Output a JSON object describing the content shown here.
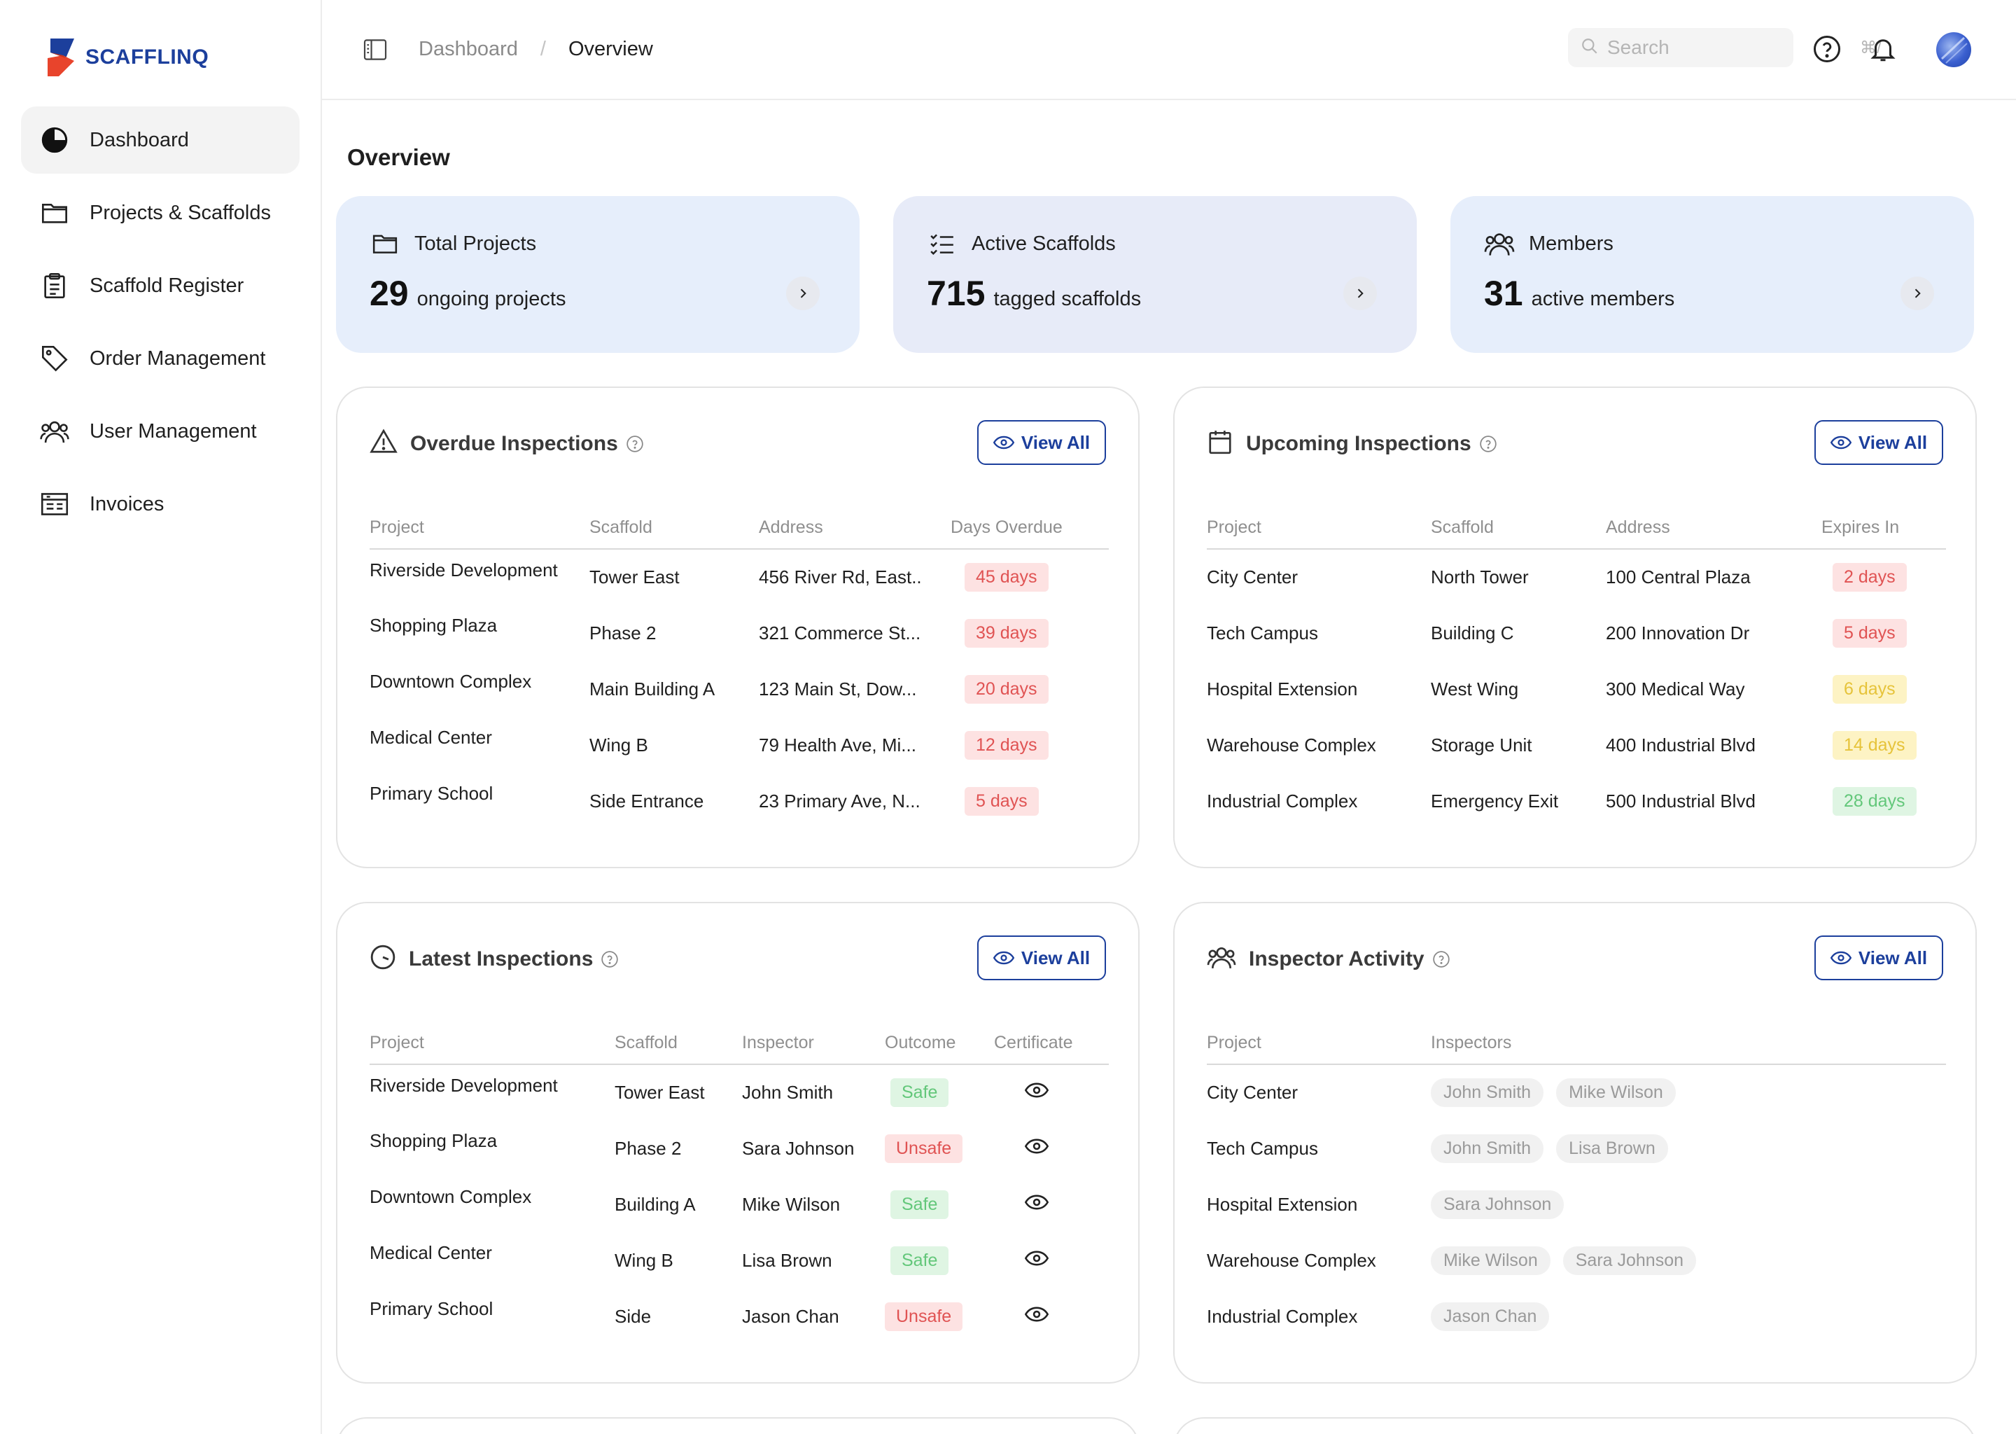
{
  "brand": {
    "name": "SCAFFLINQ",
    "colors": {
      "primary": "#1c3f9c",
      "accent": "#e8442c"
    }
  },
  "sidebar": {
    "items": [
      {
        "label": "Dashboard",
        "icon": "pie-chart-icon"
      },
      {
        "label": "Projects & Scaffolds",
        "icon": "folder-icon"
      },
      {
        "label": "Scaffold Register",
        "icon": "clipboard-icon"
      },
      {
        "label": "Order Management",
        "icon": "tag-icon"
      },
      {
        "label": "User Management",
        "icon": "users-icon"
      },
      {
        "label": "Invoices",
        "icon": "invoice-icon"
      }
    ]
  },
  "header": {
    "breadcrumb": [
      "Dashboard",
      "Overview"
    ],
    "search": {
      "placeholder": "Search",
      "shortcut": "⌘/"
    }
  },
  "page": {
    "title": "Overview"
  },
  "stats": [
    {
      "title": "Total Projects",
      "value": "29",
      "text": "ongoing projects",
      "icon": "folder-icon"
    },
    {
      "title": "Active Scaffolds",
      "value": "715",
      "text": "tagged scaffolds",
      "icon": "checklist-icon"
    },
    {
      "title": "Members",
      "value": "31",
      "text": "active members",
      "icon": "users-icon"
    }
  ],
  "overdue": {
    "title": "Overdue Inspections",
    "view_all": "View All",
    "columns": [
      "Project",
      "Scaffold",
      "Address",
      "Days Overdue"
    ],
    "rows": [
      {
        "project": "Riverside Development",
        "scaffold": "Tower East",
        "address": "456 River Rd, East..",
        "days": "45 days"
      },
      {
        "project": "Shopping Plaza",
        "scaffold": "Phase 2",
        "address": "321 Commerce St...",
        "days": "39 days"
      },
      {
        "project": "Downtown Complex",
        "scaffold": "Main Building A",
        "address": "123 Main St, Dow...",
        "days": "20 days"
      },
      {
        "project": "Medical Center",
        "scaffold": "Wing B",
        "address": "79 Health Ave, Mi...",
        "days": "12 days"
      },
      {
        "project": "Primary School",
        "scaffold": "Side Entrance",
        "address": "23 Primary Ave, N...",
        "days": "5 days"
      }
    ]
  },
  "upcoming": {
    "title": "Upcoming Inspections",
    "view_all": "View All",
    "columns": [
      "Project",
      "Scaffold",
      "Address",
      "Expires In"
    ],
    "rows": [
      {
        "project": "City Center",
        "scaffold": "North Tower",
        "address": "100 Central Plaza",
        "expires": "2 days",
        "status": "red"
      },
      {
        "project": "Tech Campus",
        "scaffold": "Building C",
        "address": "200 Innovation Dr",
        "expires": "5 days",
        "status": "red"
      },
      {
        "project": "Hospital Extension",
        "scaffold": "West Wing",
        "address": "300 Medical Way",
        "expires": "6 days",
        "status": "yellow"
      },
      {
        "project": "Warehouse Complex",
        "scaffold": "Storage Unit",
        "address": "400 Industrial Blvd",
        "expires": "14 days",
        "status": "yellow"
      },
      {
        "project": "Industrial Complex",
        "scaffold": "Emergency Exit",
        "address": "500 Industrial Blvd",
        "expires": "28 days",
        "status": "green"
      }
    ]
  },
  "latest": {
    "title": "Latest Inspections",
    "view_all": "View All",
    "columns": [
      "Project",
      "Scaffold",
      "Inspector",
      "Outcome",
      "Certificate"
    ],
    "rows": [
      {
        "project": "Riverside Development",
        "scaffold": "Tower East",
        "inspector": "John Smith",
        "outcome": "Safe",
        "status": "green"
      },
      {
        "project": "Shopping Plaza",
        "scaffold": "Phase 2",
        "inspector": "Sara Johnson",
        "outcome": "Unsafe",
        "status": "red"
      },
      {
        "project": "Downtown Complex",
        "scaffold": "Building A",
        "inspector": "Mike Wilson",
        "outcome": "Safe",
        "status": "green"
      },
      {
        "project": "Medical Center",
        "scaffold": "Wing B",
        "inspector": "Lisa Brown",
        "outcome": "Safe",
        "status": "green"
      },
      {
        "project": "Primary School",
        "scaffold": "Side",
        "inspector": "Jason Chan",
        "outcome": "Unsafe",
        "status": "red"
      }
    ]
  },
  "activity": {
    "title": "Inspector Activity",
    "view_all": "View All",
    "columns": [
      "Project",
      "Inspectors"
    ],
    "rows": [
      {
        "project": "City Center",
        "inspectors": [
          "John Smith",
          "Mike Wilson"
        ]
      },
      {
        "project": "Tech Campus",
        "inspectors": [
          "John Smith",
          "Lisa Brown"
        ]
      },
      {
        "project": "Hospital Extension",
        "inspectors": [
          "Sara Johnson"
        ]
      },
      {
        "project": "Warehouse Complex",
        "inspectors": [
          "Mike Wilson",
          "Sara Johnson"
        ]
      },
      {
        "project": "Industrial Complex",
        "inspectors": [
          "Jason Chan"
        ]
      }
    ]
  }
}
